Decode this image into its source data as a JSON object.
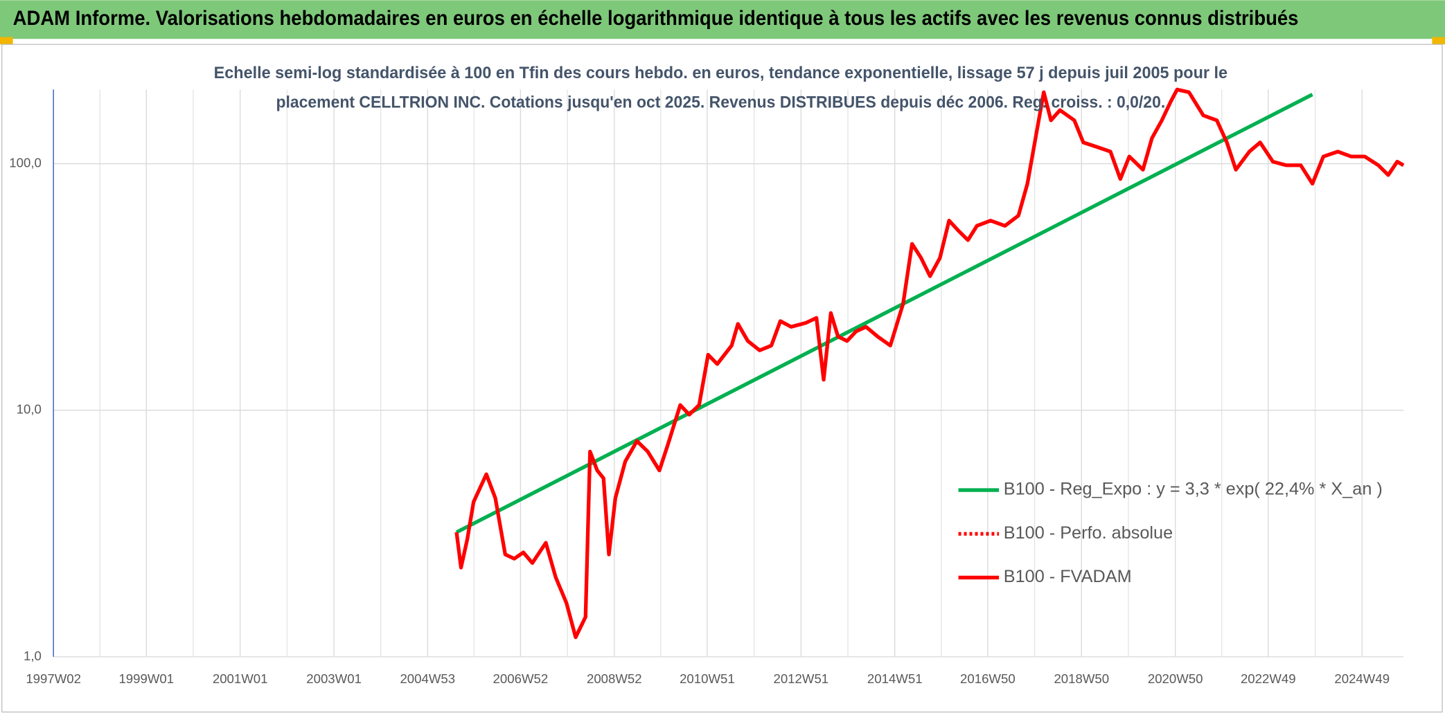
{
  "chart_data": {
    "type": "line",
    "title": "ADAM Informe. Valorisations hebdomadaires en euros en échelle logarithmique identique à tous les actifs avec les revenus connus distribués",
    "subtitle": [
      "Echelle semi-log standardisée à 100 en Tfin des cours hebdo. en euros, tendance exponentielle, lissage 57 j depuis juil 2005 pour le",
      "placement CELLTRION INC. Cotations jusqu'en oct 2025. Revenus DISTRIBUES depuis déc 2006. Reg. croiss. : 0,0/20."
    ],
    "log_scale": true,
    "grid": true,
    "legend": "lower right",
    "ylim": [
      1,
      200
    ],
    "yticks": [
      {
        "value": 1,
        "label": "1,0"
      },
      {
        "value": 10,
        "label": "10,0"
      },
      {
        "value": 100,
        "label": "100,0"
      }
    ],
    "xticks": [
      "1997W02",
      "1999W01",
      "2001W01",
      "2003W01",
      "2004W53",
      "2006W52",
      "2008W52",
      "2010W51",
      "2012W51",
      "2014W51",
      "2016W50",
      "2018W50",
      "2020W50",
      "2022W49",
      "2024W49"
    ],
    "series": [
      {
        "name": "B100 - Reg_Expo : y = 3,3 * exp( 22,4% *  X_an )",
        "color": "#00b050",
        "dash": "solid",
        "x": [
          "2005W33",
          "2023W46"
        ],
        "values": [
          3.2,
          191
        ]
      },
      {
        "name": "B100 - Perfo. absolue",
        "color": "#ff0000",
        "dash": "dotted",
        "x": [],
        "values": []
      },
      {
        "name": "B100 - FVADAM",
        "color": "#ff0000",
        "dash": "solid",
        "x": [
          "2005W33",
          "2005W38",
          "2005W45",
          "2005W52",
          "2006W14",
          "2006W24",
          "2006W35",
          "2006W45",
          "2007W03",
          "2007W13",
          "2007W28",
          "2007W39",
          "2007W51",
          "2008W09",
          "2008W20",
          "2008W25",
          "2008W33",
          "2008W40",
          "2008W46",
          "2009W01",
          "2009W12",
          "2009W25",
          "2009W37",
          "2009W50",
          "2010W08",
          "2010W21",
          "2010W31",
          "2010W42",
          "2010W52",
          "2011W10",
          "2011W26",
          "2011W33",
          "2011W44",
          "2012W05",
          "2012W18",
          "2012W28",
          "2012W40",
          "2013W04",
          "2013W16",
          "2013W24",
          "2013W32",
          "2013W40",
          "2013W50",
          "2014W08",
          "2014W19",
          "2014W32",
          "2014W46",
          "2015W08",
          "2015W18",
          "2015W28",
          "2015W38",
          "2015W49",
          "2016W07",
          "2016W17",
          "2016W28",
          "2016W38",
          "2017W01",
          "2017W17",
          "2017W32",
          "2017W42",
          "2017W52",
          "2018W08",
          "2018W16",
          "2018W26",
          "2018W42",
          "2018W52",
          "2019W15",
          "2019W30",
          "2019W41",
          "2019W51",
          "2020W14",
          "2020W24",
          "2020W35",
          "2020W45",
          "2020W52",
          "2021W13",
          "2021W29",
          "2021W44",
          "2022W03",
          "2022W13",
          "2022W28",
          "2022W40",
          "2023W02",
          "2023W17",
          "2023W33",
          "2023W46",
          "2024W06",
          "2024W22",
          "2024W37",
          "2024W52",
          "2025W15",
          "2025W26",
          "2025W36",
          "2025W43"
        ],
        "values": [
          3.2,
          2.3,
          3.0,
          4.25,
          5.5,
          4.4,
          2.6,
          2.5,
          2.65,
          2.4,
          2.9,
          2.1,
          1.65,
          1.2,
          1.45,
          6.8,
          5.7,
          5.3,
          2.6,
          4.4,
          6.2,
          7.5,
          6.8,
          5.7,
          7.4,
          10.5,
          9.6,
          10.5,
          16.8,
          15.4,
          18.3,
          22.4,
          19.1,
          17.5,
          18.3,
          23,
          21.8,
          22.6,
          23.7,
          13.3,
          24.8,
          19.9,
          19.1,
          20.9,
          21.8,
          19.9,
          18.3,
          27,
          47.3,
          41.5,
          35,
          41.5,
          58.8,
          53.7,
          49,
          56,
          58.8,
          56,
          61.6,
          83,
          133,
          195,
          150,
          165,
          150,
          122,
          117,
          112,
          86.7,
          107,
          94.6,
          127,
          150,
          179,
          200,
          195,
          157,
          150,
          122,
          94.6,
          112,
          122,
          102,
          98.6,
          98.6,
          83,
          107,
          112,
          107,
          107,
          98.6,
          90,
          102,
          98.6
        ]
      }
    ]
  }
}
